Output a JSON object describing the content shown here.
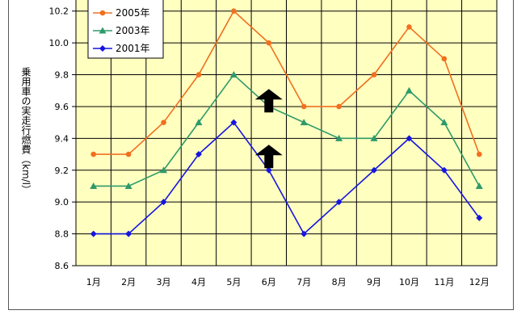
{
  "chart_data": {
    "type": "line",
    "title": "",
    "xlabel": "",
    "ylabel": "乗用車の実走行燃費（km/l）",
    "categories": [
      "1月",
      "2月",
      "3月",
      "4月",
      "5月",
      "6月",
      "7月",
      "8月",
      "9月",
      "10月",
      "11月",
      "12月"
    ],
    "ylim": [
      8.6,
      10.3
    ],
    "yticks": [
      "8.6",
      "8.8",
      "9.0",
      "9.2",
      "9.4",
      "9.6",
      "9.8",
      "10.0",
      "10.2"
    ],
    "grid": true,
    "legend_position": "top-left",
    "background_color": "#ffffc0",
    "series": [
      {
        "name": "2005年",
        "color": "#f07020",
        "marker": "circle",
        "values": [
          9.3,
          9.3,
          9.5,
          9.8,
          10.2,
          10.0,
          9.6,
          9.6,
          9.8,
          10.1,
          9.9,
          9.3
        ]
      },
      {
        "name": "2003年",
        "color": "#2e9a6a",
        "marker": "triangle",
        "values": [
          9.1,
          9.1,
          9.2,
          9.5,
          9.8,
          9.6,
          9.5,
          9.4,
          9.4,
          9.7,
          9.5,
          9.1
        ]
      },
      {
        "name": "2001年",
        "color": "#1515e0",
        "marker": "diamond",
        "values": [
          8.8,
          8.8,
          9.0,
          9.3,
          9.5,
          9.2,
          8.8,
          9.0,
          9.2,
          9.4,
          9.2,
          8.9
        ]
      }
    ],
    "annotations": [
      {
        "type": "up-arrow-icon",
        "category": "6月",
        "y": 9.71
      },
      {
        "type": "up-arrow-icon",
        "category": "6月",
        "y": 9.36
      }
    ]
  }
}
